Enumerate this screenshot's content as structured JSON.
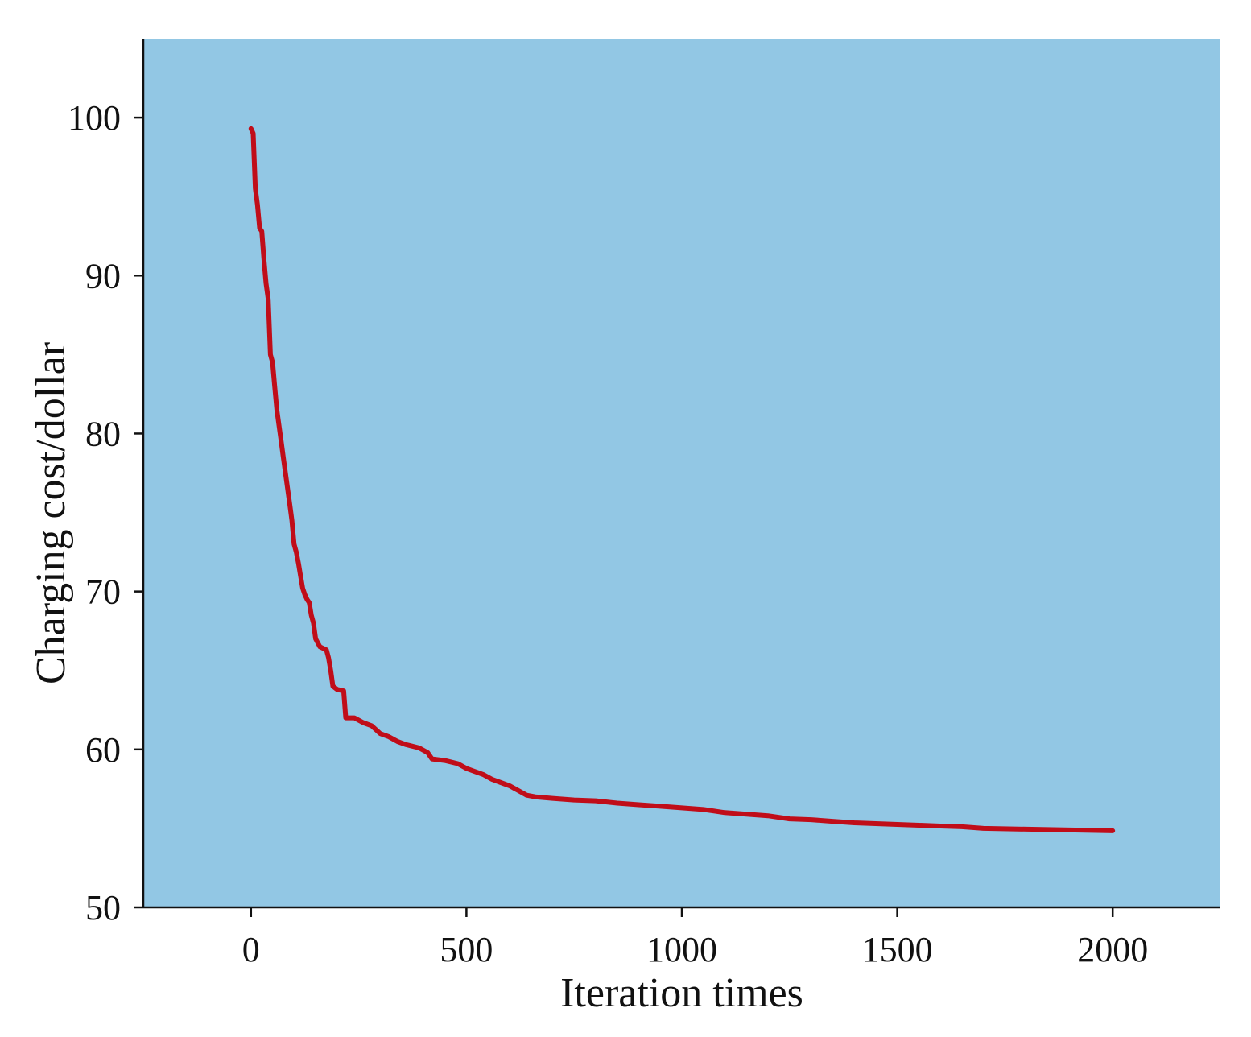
{
  "chart_data": {
    "type": "line",
    "title": "",
    "xlabel": "Iteration times",
    "ylabel": "Charging cost/dollar",
    "xlim": [
      -250,
      2250
    ],
    "ylim": [
      50,
      105
    ],
    "xticks": [
      0,
      500,
      1000,
      1500,
      2000
    ],
    "yticks": [
      50,
      60,
      70,
      80,
      90,
      100
    ],
    "grid": false,
    "legend": "none",
    "colors": {
      "plot_background": "#92c7e4",
      "line": "#c00d19",
      "axis": "#111111"
    },
    "series": [
      {
        "values": [
          [
            0,
            99.3
          ],
          [
            5,
            99.0
          ],
          [
            10,
            95.5
          ],
          [
            15,
            94.5
          ],
          [
            20,
            93.0
          ],
          [
            25,
            92.8
          ],
          [
            30,
            91.0
          ],
          [
            35,
            89.5
          ],
          [
            40,
            88.5
          ],
          [
            45,
            85.0
          ],
          [
            50,
            84.5
          ],
          [
            55,
            83.0
          ],
          [
            60,
            81.5
          ],
          [
            65,
            80.5
          ],
          [
            70,
            79.5
          ],
          [
            75,
            78.5
          ],
          [
            80,
            77.5
          ],
          [
            85,
            76.5
          ],
          [
            90,
            75.5
          ],
          [
            95,
            74.5
          ],
          [
            100,
            73.0
          ],
          [
            105,
            72.5
          ],
          [
            110,
            71.8
          ],
          [
            115,
            71.0
          ],
          [
            120,
            70.2
          ],
          [
            125,
            69.8
          ],
          [
            130,
            69.5
          ],
          [
            135,
            69.3
          ],
          [
            140,
            68.5
          ],
          [
            145,
            68.0
          ],
          [
            150,
            67.0
          ],
          [
            160,
            66.5
          ],
          [
            175,
            66.3
          ],
          [
            180,
            65.8
          ],
          [
            185,
            65.0
          ],
          [
            190,
            64.0
          ],
          [
            200,
            63.8
          ],
          [
            215,
            63.7
          ],
          [
            220,
            62.0
          ],
          [
            240,
            62.0
          ],
          [
            260,
            61.7
          ],
          [
            280,
            61.5
          ],
          [
            300,
            61.0
          ],
          [
            320,
            60.8
          ],
          [
            340,
            60.5
          ],
          [
            360,
            60.3
          ],
          [
            390,
            60.1
          ],
          [
            410,
            59.8
          ],
          [
            420,
            59.4
          ],
          [
            450,
            59.3
          ],
          [
            480,
            59.1
          ],
          [
            500,
            58.8
          ],
          [
            520,
            58.6
          ],
          [
            540,
            58.4
          ],
          [
            560,
            58.1
          ],
          [
            580,
            57.9
          ],
          [
            600,
            57.7
          ],
          [
            620,
            57.4
          ],
          [
            640,
            57.1
          ],
          [
            660,
            57.0
          ],
          [
            700,
            56.9
          ],
          [
            750,
            56.8
          ],
          [
            800,
            56.75
          ],
          [
            850,
            56.6
          ],
          [
            900,
            56.5
          ],
          [
            950,
            56.4
          ],
          [
            1000,
            56.3
          ],
          [
            1050,
            56.2
          ],
          [
            1100,
            56.0
          ],
          [
            1150,
            55.9
          ],
          [
            1200,
            55.8
          ],
          [
            1250,
            55.6
          ],
          [
            1300,
            55.55
          ],
          [
            1350,
            55.45
          ],
          [
            1400,
            55.35
          ],
          [
            1450,
            55.3
          ],
          [
            1500,
            55.25
          ],
          [
            1550,
            55.2
          ],
          [
            1600,
            55.15
          ],
          [
            1650,
            55.1
          ],
          [
            1700,
            55.0
          ],
          [
            1800,
            54.95
          ],
          [
            1900,
            54.9
          ],
          [
            2000,
            54.85
          ]
        ]
      }
    ]
  }
}
